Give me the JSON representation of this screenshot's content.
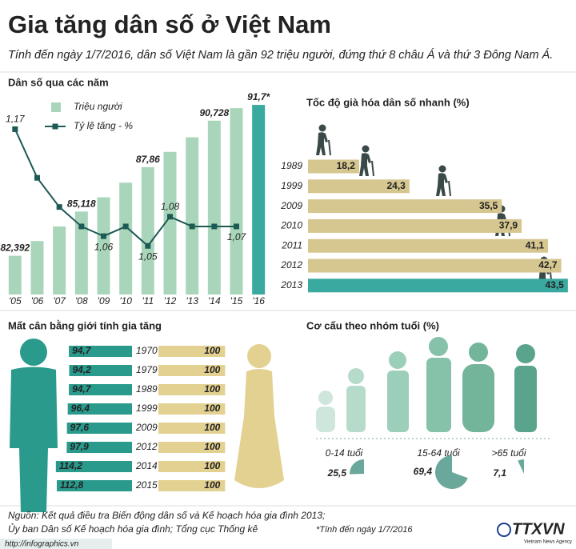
{
  "title": "Gia tăng dân số ở Việt Nam",
  "subtitle": "Tính đến ngày 1/7/2016, dân số Việt Nam là gần 92 triệu người, đứng thứ 8 châu Á và thứ 3 Đông Nam Á.",
  "chart_data": [
    {
      "type": "bar_line",
      "title": "Dân số qua các năm",
      "categories": [
        "'05",
        "'06",
        "'07",
        "'08",
        "'09",
        "'10",
        "'11",
        "'12",
        "'13",
        "'14",
        "'15",
        "'16"
      ],
      "series": [
        {
          "name": "Triệu người",
          "type": "bar",
          "color": "#a9d6bb",
          "colors": [
            "#a9d6bb",
            "#a9d6bb",
            "#a9d6bb",
            "#a9d6bb",
            "#a9d6bb",
            "#a9d6bb",
            "#a9d6bb",
            "#a9d6bb",
            "#a9d6bb",
            "#a9d6bb",
            "#a9d6bb",
            "#3aa99f"
          ],
          "values": [
            82.392,
            83.3,
            84.2,
            85.118,
            86.0,
            86.9,
            87.86,
            88.8,
            89.7,
            90.728,
            91.5,
            91.7
          ],
          "value_labels": [
            "82,392",
            null,
            null,
            "85,118",
            null,
            null,
            "87,86",
            null,
            null,
            "90,728",
            null,
            "91,7*"
          ]
        },
        {
          "name": "Tỷ lệ tăng - %",
          "type": "line",
          "axis": "y2",
          "color": "#1e5a54",
          "values": [
            1.17,
            1.12,
            1.09,
            1.07,
            1.06,
            1.07,
            1.05,
            1.08,
            1.07,
            1.07,
            1.07,
            null
          ],
          "value_labels": [
            "1,17",
            null,
            null,
            null,
            "1,06",
            null,
            "1,05",
            "1,08",
            null,
            null,
            "1,07",
            null
          ]
        }
      ],
      "ylim": [
        80,
        92
      ],
      "y2lim": [
        1.0,
        1.2
      ]
    },
    {
      "type": "hbar",
      "title": "Tốc độ già hóa dân số nhanh (%)",
      "categories": [
        "1989",
        "1999",
        "2009",
        "2010",
        "2011",
        "2012",
        "2013"
      ],
      "values": [
        18.2,
        24.3,
        35.5,
        37.9,
        41.1,
        42.7,
        43.5
      ],
      "value_labels": [
        "18,2",
        "24,3",
        "35,5",
        "37,9",
        "41,1",
        "42,7",
        "43,5"
      ],
      "colors": [
        "#d6c690",
        "#d6c690",
        "#d6c690",
        "#d6c690",
        "#d6c690",
        "#d6c690",
        "#3aa99f"
      ],
      "xlim": [
        12,
        44
      ]
    },
    {
      "type": "paired_hbar",
      "title": "Mất cân bằng giới tính gia tăng",
      "categories": [
        "1970",
        "1979",
        "1989",
        "1999",
        "2009",
        "2012",
        "2014",
        "2015"
      ],
      "series": [
        {
          "color": "#2a9a8c",
          "values": [
            94.7,
            94.2,
            94.7,
            96.4,
            97.6,
            97.9,
            114.2,
            112.8
          ],
          "value_labels": [
            "94,7",
            "94,2",
            "94,7",
            "96,4",
            "97,6",
            "97,9",
            "114,2",
            "112,8"
          ]
        },
        {
          "color": "#e3d191",
          "values": [
            100,
            100,
            100,
            100,
            100,
            100,
            100,
            100
          ]
        }
      ],
      "xlim": [
        0,
        120
      ]
    },
    {
      "type": "pie",
      "title": "Cơ cấu theo nhóm tuổi (%)",
      "categories": [
        "0-14 tuổi",
        "15-64 tuổi",
        ">65 tuổi"
      ],
      "values": [
        25.5,
        69.4,
        7.1
      ],
      "value_labels": [
        "25,5",
        "69,4",
        "7,1"
      ],
      "color": "#6aa89b"
    }
  ],
  "footer": {
    "source": [
      "Nguồn: Kết quả điều tra Biến động dân số và Kế hoạch hóa gia đình 2013;",
      "Ủy ban Dân số Kế hoạch hóa gia đình; Tổng cục Thống kê"
    ],
    "note": "*Tính đến ngày 1/7/2016",
    "url": "http://infographics.vn",
    "logo": "TTXVN",
    "logo_sub": "Vietnam News Agency"
  }
}
